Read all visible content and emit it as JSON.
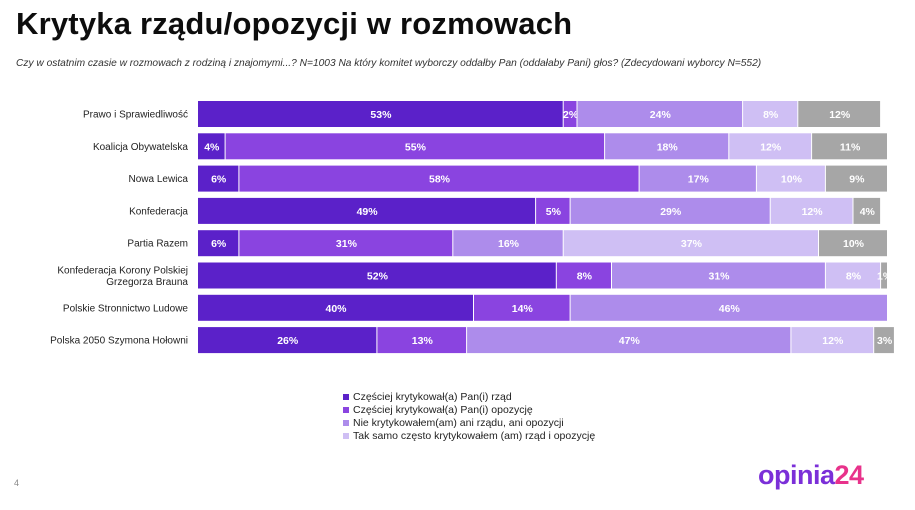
{
  "title": "Krytyka rządu/opozycji w rozmowach",
  "subtitle": "Czy w ostatnim czasie w rozmowach z rodziną i znajomymi...? N=1003 Na który komitet wyborczy oddałby Pan (oddałaby Pani) głos? (Zdecydowani wyborcy N=552)",
  "page_number": "4",
  "logo": {
    "part1": "opinia",
    "part2": "24"
  },
  "colors": {
    "brand_purple": "#7b2fd8",
    "brand_pink": "#e8328b"
  },
  "chart_data": {
    "type": "bar",
    "orientation": "horizontal",
    "stacked": true,
    "categories": [
      [
        "Prawo i Sprawiedliwość"
      ],
      [
        "Koalicja Obywatelska"
      ],
      [
        "Nowa Lewica"
      ],
      [
        "Konfederacja"
      ],
      [
        "Partia Razem"
      ],
      [
        "Konfederacja Korony Polskiej",
        "Grzegorza Brauna"
      ],
      [
        "Polskie Stronnictwo Ludowe"
      ],
      [
        "Polska 2050 Szymona Hołowni"
      ]
    ],
    "series": [
      {
        "name": "Częściej krytykował(a) Pan(i) rząd",
        "color": "#5b21c9",
        "values": [
          53,
          4,
          6,
          49,
          6,
          52,
          40,
          26
        ]
      },
      {
        "name": "Częściej krytykował(a) Pan(i) opozycję",
        "color": "#8a44e0",
        "values": [
          2,
          55,
          58,
          5,
          31,
          8,
          14,
          13
        ]
      },
      {
        "name": "Nie krytykowałem(am) ani rządu, ani opozycji",
        "color": "#ad8ceb",
        "values": [
          24,
          18,
          17,
          29,
          16,
          31,
          46,
          47
        ]
      },
      {
        "name": "Tak samo często krytykowałem (am) rząd i opozycję",
        "color": "#cfbff4",
        "values": [
          8,
          12,
          10,
          12,
          37,
          8,
          0,
          12
        ]
      },
      {
        "name": "",
        "color": "#a6a6a6",
        "values": [
          12,
          11,
          9,
          4,
          10,
          1,
          0,
          3
        ]
      }
    ],
    "value_suffix": "%",
    "xlim": [
      0,
      100
    ],
    "legend_position": "bottom",
    "grid": false
  }
}
